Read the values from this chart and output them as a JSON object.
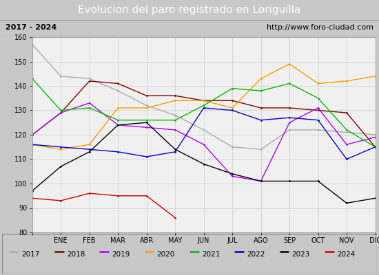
{
  "title": "Evolucion del paro registrado en Loriguilla",
  "subtitle_left": "2017 - 2024",
  "subtitle_right": "http://www.foro-ciudad.com",
  "x_labels": [
    "",
    "ENE",
    "FEB",
    "MAR",
    "ABR",
    "MAY",
    "JUN",
    "JUL",
    "AGO",
    "SEP",
    "OCT",
    "NOV",
    "DIC"
  ],
  "ylim": [
    80,
    160
  ],
  "yticks": [
    80,
    90,
    100,
    110,
    120,
    130,
    140,
    150,
    160
  ],
  "series": {
    "2017": {
      "color": "#aaaaaa",
      "data": [
        157,
        144,
        143,
        138,
        132,
        128,
        122,
        115,
        114,
        122,
        122,
        121,
        120
      ]
    },
    "2018": {
      "color": "#800000",
      "data": [
        120,
        129,
        142,
        141,
        136,
        136,
        134,
        134,
        131,
        131,
        130,
        129,
        115
      ]
    },
    "2019": {
      "color": "#aa00ff",
      "data": [
        120,
        129,
        133,
        124,
        123,
        122,
        116,
        103,
        101,
        125,
        131,
        116,
        119
      ]
    },
    "2020": {
      "color": "#ff9900",
      "data": [
        116,
        114,
        116,
        131,
        131,
        134,
        134,
        131,
        143,
        149,
        141,
        142,
        144
      ]
    },
    "2021": {
      "color": "#00bb00",
      "data": [
        143,
        130,
        131,
        126,
        126,
        126,
        132,
        139,
        138,
        141,
        135,
        122,
        115
      ]
    },
    "2022": {
      "color": "#0000cc",
      "data": [
        116,
        115,
        114,
        113,
        111,
        113,
        131,
        130,
        126,
        127,
        126,
        110,
        115
      ]
    },
    "2023": {
      "color": "#000000",
      "data": [
        97,
        107,
        113,
        124,
        125,
        114,
        108,
        104,
        101,
        101,
        101,
        92,
        94
      ]
    },
    "2024": {
      "color": "#cc0000",
      "data": [
        94,
        93,
        96,
        95,
        95,
        86,
        null,
        null,
        null,
        null,
        null,
        null,
        null
      ]
    }
  },
  "title_bg_color": "#4472c4",
  "title_fg_color": "#ffffff",
  "subtitle_bg_color": "#e0e0e0",
  "plot_bg_color": "#f0f0f0",
  "grid_color": "#cccccc",
  "legend_bg_color": "#f0f0f0",
  "outer_bg_color": "#c8c8c8",
  "title_fontsize": 11,
  "subtitle_fontsize": 8,
  "axis_fontsize": 7,
  "legend_fontsize": 7.5
}
